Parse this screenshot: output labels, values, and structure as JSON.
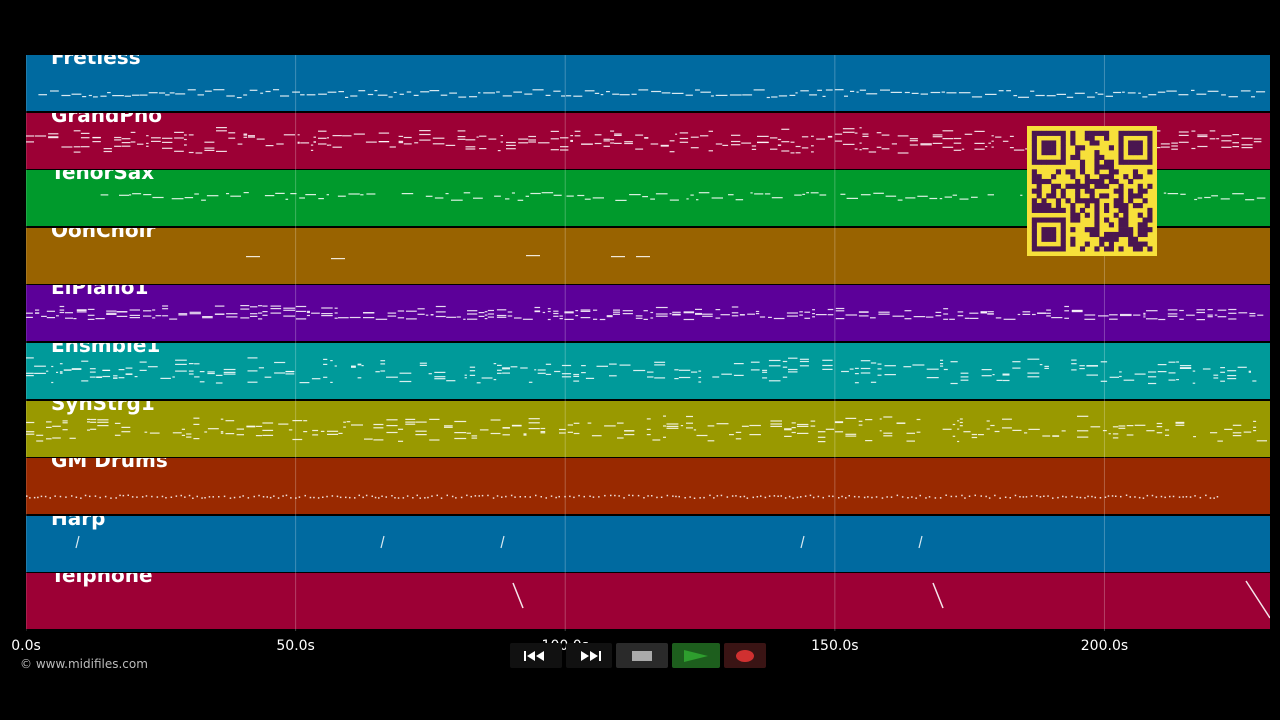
{
  "tracks": [
    {
      "name": "Fretless",
      "color": "#006aa0"
    },
    {
      "name": "GrandPno",
      "color": "#9c0035"
    },
    {
      "name": "TenorSax",
      "color": "#009a2c"
    },
    {
      "name": "OohChoir",
      "color": "#996300"
    },
    {
      "name": "ElPiano1",
      "color": "#5c0099"
    },
    {
      "name": "Ensmble1",
      "color": "#009a9a"
    },
    {
      "name": "SynStrg1",
      "color": "#999900"
    },
    {
      "name": "GM Drums",
      "color": "#992900"
    },
    {
      "name": "Harp",
      "color": "#006aa0"
    },
    {
      "name": "Telphone",
      "color": "#9c0035"
    }
  ],
  "timeline": {
    "ticks": [
      "0.0s",
      "50.0s",
      "100.0s",
      "150.0s",
      "200.0s"
    ],
    "tick_seconds": [
      0,
      50,
      100,
      150,
      200
    ],
    "max_seconds": 230.7
  },
  "copyright": "© www.midifiles.com",
  "transport": {
    "rewind_icon": "rewind-icon",
    "fast_forward_icon": "fast-forward-icon",
    "stop_icon": "stop-icon",
    "play_icon": "play-icon",
    "record_icon": "record-icon",
    "play_color": "#2e9e2e",
    "record_color": "#d03030"
  },
  "qr": {
    "icon": "qr-code-icon",
    "fg": "#4a1650",
    "bg": "#f7e03a"
  }
}
